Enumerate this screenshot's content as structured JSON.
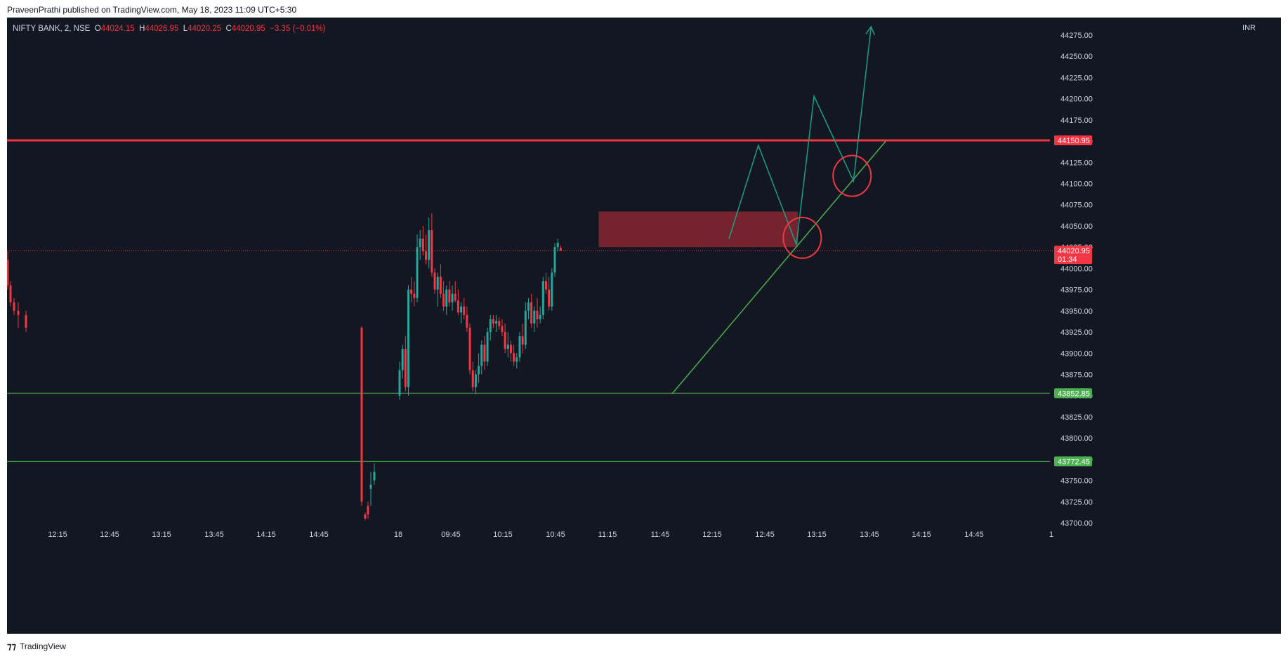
{
  "header": {
    "caption": "PraveenPrathi published on TradingView.com, May 18, 2023 11:09 UTC+5:30"
  },
  "legend": {
    "symbol": "NIFTY BANK, 2, NSE",
    "o_label": "O",
    "o_value": "44024.15",
    "h_label": "H",
    "h_value": "44026.95",
    "l_label": "L",
    "l_value": "44020.25",
    "c_label": "C",
    "c_value": "44020.95",
    "change": "−3.35 (−0.01%)"
  },
  "currency": "INR",
  "footer": {
    "brand": "TradingView"
  },
  "colors": {
    "background": "#131722",
    "up": "#26a69a",
    "down": "#f23645",
    "resistance": "#f23645",
    "support": "#4caf50",
    "zone": "#7a2530",
    "projection": "#1e9e82",
    "circle": "#f23645"
  },
  "chart_data": {
    "type": "candlestick",
    "title": "NIFTY BANK, 2, NSE",
    "currency": "INR",
    "ylim": [
      43700,
      44290
    ],
    "y_ticks": [
      43700,
      43725,
      43750,
      43775,
      43800,
      43825,
      43850,
      43875,
      43900,
      43925,
      43950,
      43975,
      44000,
      44025,
      44050,
      44075,
      44100,
      44125,
      44150,
      44175,
      44200,
      44225,
      44250,
      44275
    ],
    "y_tick_labels": [
      "43700.00",
      "43725.00",
      "43750.00",
      "43775.00",
      "43800.00",
      "43825.00",
      "43850.00",
      "43875.00",
      "43900.00",
      "43925.00",
      "43950.00",
      "43975.00",
      "44000.00",
      "44025.00",
      "44050.00",
      "44075.00",
      "44100.00",
      "44125.00",
      "44150.00",
      "44175.00",
      "44200.00",
      "44225.00",
      "44250.00",
      "44275.00"
    ],
    "x_tick_labels": [
      "12:15",
      "12:45",
      "13:15",
      "13:45",
      "14:15",
      "14:45",
      "18",
      "09:45",
      "10:15",
      "10:45",
      "11:15",
      "11:45",
      "12:15",
      "12:45",
      "13:15",
      "13:45",
      "14:15",
      "14:45",
      "1"
    ],
    "price_tags": [
      {
        "value": 44150.95,
        "label": "44150.95",
        "color": "#f23645"
      },
      {
        "value": 44020.95,
        "label": "44020.95",
        "sublabel": "01:34",
        "color": "#f23645"
      },
      {
        "value": 43852.85,
        "label": "43852.85",
        "color": "#4caf50"
      },
      {
        "value": 43772.45,
        "label": "43772.45",
        "color": "#4caf50"
      }
    ],
    "horizontal_lines": [
      {
        "value": 44150.95,
        "color": "#f23645",
        "width": 3
      },
      {
        "value": 43852.85,
        "color": "#4caf50",
        "width": 1
      },
      {
        "value": 43772.45,
        "color": "#4caf50",
        "width": 1
      },
      {
        "value": 44020.95,
        "color": "#f23645",
        "width": 1,
        "dotted": true
      }
    ],
    "zone": {
      "bar_from": 68,
      "bar_to": 136,
      "y_from": 44025,
      "y_to": 44067
    },
    "trendline": [
      [
        93,
        43852
      ],
      [
        166,
        44150
      ]
    ],
    "projection_path": [
      [
        112.5,
        44035
      ],
      [
        122.5,
        44145
      ],
      [
        135.5,
        44028
      ],
      [
        141.5,
        44203
      ],
      [
        155,
        44103
      ],
      [
        161,
        44285
      ]
    ],
    "arrow_head_bar": 161,
    "circles": [
      {
        "bar": 137.5,
        "value": 44036
      },
      {
        "bar": 154.5,
        "value": 44109
      }
    ],
    "candles_prev_day": [
      [
        44010,
        44020,
        43975,
        43980
      ],
      [
        43980,
        43985,
        43955,
        43960
      ],
      [
        43960,
        43965,
        43945,
        43950
      ],
      [
        43950,
        43960,
        43930,
        43945
      ],
      [
        43945,
        43950,
        43925,
        43930
      ],
      [
        43930,
        43932,
        43720,
        43725
      ],
      [
        43710,
        43712,
        43703,
        43705
      ],
      [
        43720,
        43725,
        43705,
        43710
      ],
      [
        43740,
        43760,
        43720,
        43745
      ],
      [
        43750,
        43770,
        43745,
        43760
      ]
    ],
    "candles": [
      [
        43850,
        43890,
        43845,
        43880
      ],
      [
        43880,
        43910,
        43870,
        43905
      ],
      [
        43905,
        43920,
        43855,
        43860
      ],
      [
        43860,
        43980,
        43850,
        43975
      ],
      [
        43975,
        43990,
        43960,
        43970
      ],
      [
        43970,
        43985,
        43955,
        43965
      ],
      [
        43965,
        44040,
        43960,
        44025
      ],
      [
        44025,
        44045,
        44010,
        44035
      ],
      [
        44035,
        44050,
        44015,
        44020
      ],
      [
        44020,
        44040,
        44005,
        44010
      ],
      [
        44010,
        44060,
        44000,
        44045
      ],
      [
        44045,
        44065,
        43990,
        43995
      ],
      [
        43995,
        44000,
        43970,
        43975
      ],
      [
        43975,
        43995,
        43955,
        43990
      ],
      [
        43990,
        44005,
        43965,
        43970
      ],
      [
        43970,
        43985,
        43950,
        43955
      ],
      [
        43955,
        43980,
        43945,
        43975
      ],
      [
        43975,
        43985,
        43955,
        43960
      ],
      [
        43960,
        43980,
        43950,
        43970
      ],
      [
        43970,
        43985,
        43960,
        43962
      ],
      [
        43962,
        43975,
        43945,
        43948
      ],
      [
        43948,
        43960,
        43935,
        43955
      ],
      [
        43955,
        43965,
        43940,
        43945
      ],
      [
        43945,
        43955,
        43925,
        43930
      ],
      [
        43930,
        43935,
        43875,
        43880
      ],
      [
        43880,
        43890,
        43855,
        43860
      ],
      [
        43860,
        43880,
        43852,
        43875
      ],
      [
        43875,
        43900,
        43865,
        43885
      ],
      [
        43885,
        43915,
        43875,
        43910
      ],
      [
        43910,
        43920,
        43880,
        43890
      ],
      [
        43890,
        43930,
        43885,
        43925
      ],
      [
        43925,
        43945,
        43915,
        43940
      ],
      [
        43940,
        43945,
        43930,
        43935
      ],
      [
        43935,
        43945,
        43925,
        43938
      ],
      [
        43938,
        43942,
        43928,
        43932
      ],
      [
        43932,
        43940,
        43920,
        43925
      ],
      [
        43925,
        43935,
        43900,
        43905
      ],
      [
        43905,
        43925,
        43895,
        43910
      ],
      [
        43910,
        43915,
        43890,
        43900
      ],
      [
        43900,
        43910,
        43885,
        43890
      ],
      [
        43890,
        43900,
        43882,
        43895
      ],
      [
        43895,
        43925,
        43890,
        43920
      ],
      [
        43920,
        43935,
        43900,
        43910
      ],
      [
        43910,
        43960,
        43905,
        43950
      ],
      [
        43950,
        43965,
        43940,
        43960
      ],
      [
        43960,
        43970,
        43930,
        43935
      ],
      [
        43935,
        43955,
        43925,
        43950
      ],
      [
        43950,
        43965,
        43930,
        43940
      ],
      [
        43940,
        43955,
        43935,
        43945
      ],
      [
        43945,
        43990,
        43940,
        43985
      ],
      [
        43985,
        43995,
        43970,
        43975
      ],
      [
        43975,
        43990,
        43950,
        43955
      ],
      [
        43955,
        44000,
        43950,
        43995
      ],
      [
        43995,
        44030,
        43990,
        44025
      ],
      [
        44025,
        44035,
        44020,
        44030
      ],
      [
        44024.15,
        44026.95,
        44020.25,
        44020.95
      ]
    ]
  }
}
